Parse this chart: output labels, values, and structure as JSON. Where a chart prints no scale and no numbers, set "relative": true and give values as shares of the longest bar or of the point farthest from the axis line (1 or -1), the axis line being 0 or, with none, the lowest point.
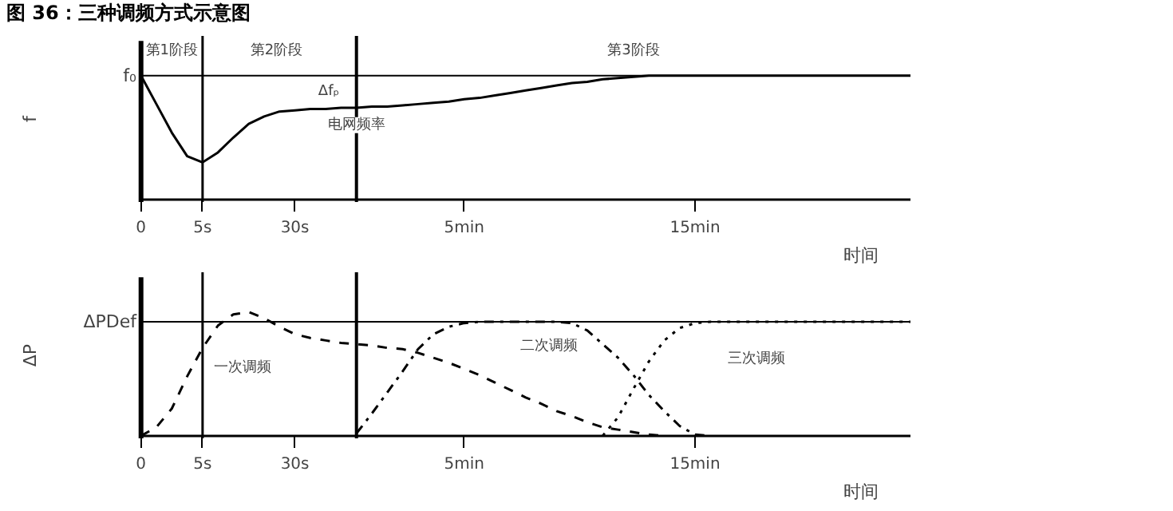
{
  "chart_data": [
    {
      "type": "line",
      "title": "图 36：三种调频方式示意图",
      "relative": true,
      "ylabel": "f",
      "xlabel": "时间",
      "categories": [
        "0",
        null,
        null,
        null,
        "5s",
        null,
        null,
        null,
        null,
        null,
        "30s",
        null,
        null,
        null,
        null,
        null,
        null,
        null,
        null,
        null,
        null,
        "5min",
        null,
        null,
        null,
        null,
        null,
        null,
        null,
        null,
        null,
        null,
        null,
        null,
        null,
        null,
        "15min",
        null,
        null,
        null,
        null,
        null,
        null,
        null,
        null,
        null,
        null,
        null,
        null,
        null,
        null
      ],
      "series": [
        {
          "color": "#000000",
          "line_style": "solid",
          "values": [
            1.0,
            0.77,
            0.54,
            0.35,
            0.3,
            0.38,
            0.5,
            0.61,
            0.67,
            0.71,
            0.72,
            0.73,
            0.73,
            0.74,
            0.74,
            0.75,
            0.75,
            0.76,
            0.77,
            0.78,
            0.79,
            0.81,
            0.82,
            0.84,
            0.86,
            0.88,
            0.9,
            0.92,
            0.94,
            0.95,
            0.97,
            0.98,
            0.99,
            1.0,
            1.0,
            1.0,
            1.0,
            1.0,
            1.0,
            1.0,
            1.0,
            1.0,
            1.0,
            1.0,
            1.0,
            1.0,
            1.0,
            1.0,
            1.0,
            1.0,
            1.0
          ]
        }
      ],
      "ref_lines": [
        {
          "axis": "y",
          "value": 1.0,
          "label": "f₀"
        },
        {
          "axis": "x",
          "value": "5s",
          "label": null
        }
      ],
      "annotations": [
        "第1阶段",
        "第2阶段",
        "第3阶段",
        "Δfₚ",
        "电网频率"
      ],
      "grid": false
    },
    {
      "type": "line",
      "relative": true,
      "ylabel": "ΔP",
      "xlabel": "时间",
      "categories": [
        "0",
        null,
        null,
        null,
        "5s",
        null,
        null,
        null,
        null,
        null,
        "30s",
        null,
        null,
        null,
        null,
        null,
        null,
        null,
        null,
        null,
        null,
        "5min",
        null,
        null,
        null,
        null,
        null,
        null,
        null,
        null,
        null,
        null,
        null,
        null,
        null,
        null,
        "15min",
        null,
        null,
        null,
        null,
        null,
        null,
        null,
        null,
        null,
        null,
        null,
        null,
        null,
        null
      ],
      "series": [
        {
          "color": "#000000",
          "line_style": "dashed",
          "values": [
            0,
            0.07,
            0.22,
            0.48,
            0.71,
            0.89,
            0.98,
            1.0,
            0.95,
            0.88,
            0.82,
            0.79,
            0.77,
            0.75,
            0.74,
            0.73,
            0.71,
            0.7,
            0.67,
            0.63,
            0.59,
            0.54,
            0.49,
            0.43,
            0.37,
            0.31,
            0.26,
            0.2,
            0.16,
            0.11,
            0.07,
            0.05,
            0.03,
            0.01,
            0,
            null,
            null,
            null,
            null,
            null,
            null,
            null,
            null,
            null,
            null,
            null,
            null,
            null,
            null,
            null,
            null
          ]
        },
        {
          "color": "#000000",
          "line_style": "dashdot",
          "values": [
            null,
            null,
            null,
            null,
            null,
            null,
            null,
            null,
            null,
            null,
            null,
            null,
            null,
            null,
            0.02,
            0.18,
            0.35,
            0.52,
            0.7,
            0.82,
            0.88,
            0.91,
            0.92,
            0.92,
            0.92,
            0.92,
            0.92,
            0.92,
            0.91,
            0.85,
            0.74,
            0.63,
            0.49,
            0.33,
            0.2,
            0.08,
            0.01,
            0,
            null,
            null,
            null,
            null,
            null,
            null,
            null,
            null,
            null,
            null,
            null,
            null,
            null
          ]
        },
        {
          "color": "#000000",
          "line_style": "dotted",
          "values": [
            null,
            null,
            null,
            null,
            null,
            null,
            null,
            null,
            null,
            null,
            null,
            null,
            null,
            null,
            null,
            null,
            null,
            null,
            null,
            null,
            null,
            null,
            null,
            null,
            null,
            null,
            null,
            null,
            null,
            null,
            0,
            0.15,
            0.38,
            0.6,
            0.77,
            0.87,
            0.91,
            0.92,
            0.92,
            0.92,
            0.92,
            0.92,
            0.92,
            0.92,
            0.92,
            0.92,
            0.92,
            0.92,
            0.92,
            0.92,
            0.92
          ]
        }
      ],
      "ref_lines": [
        {
          "axis": "y",
          "value": 0.92,
          "label": "ΔPDef"
        },
        {
          "axis": "x",
          "value": "5s",
          "label": null
        }
      ],
      "annotations": [
        "一次调频",
        "二次调频",
        "三次调频"
      ],
      "grid": false
    }
  ]
}
